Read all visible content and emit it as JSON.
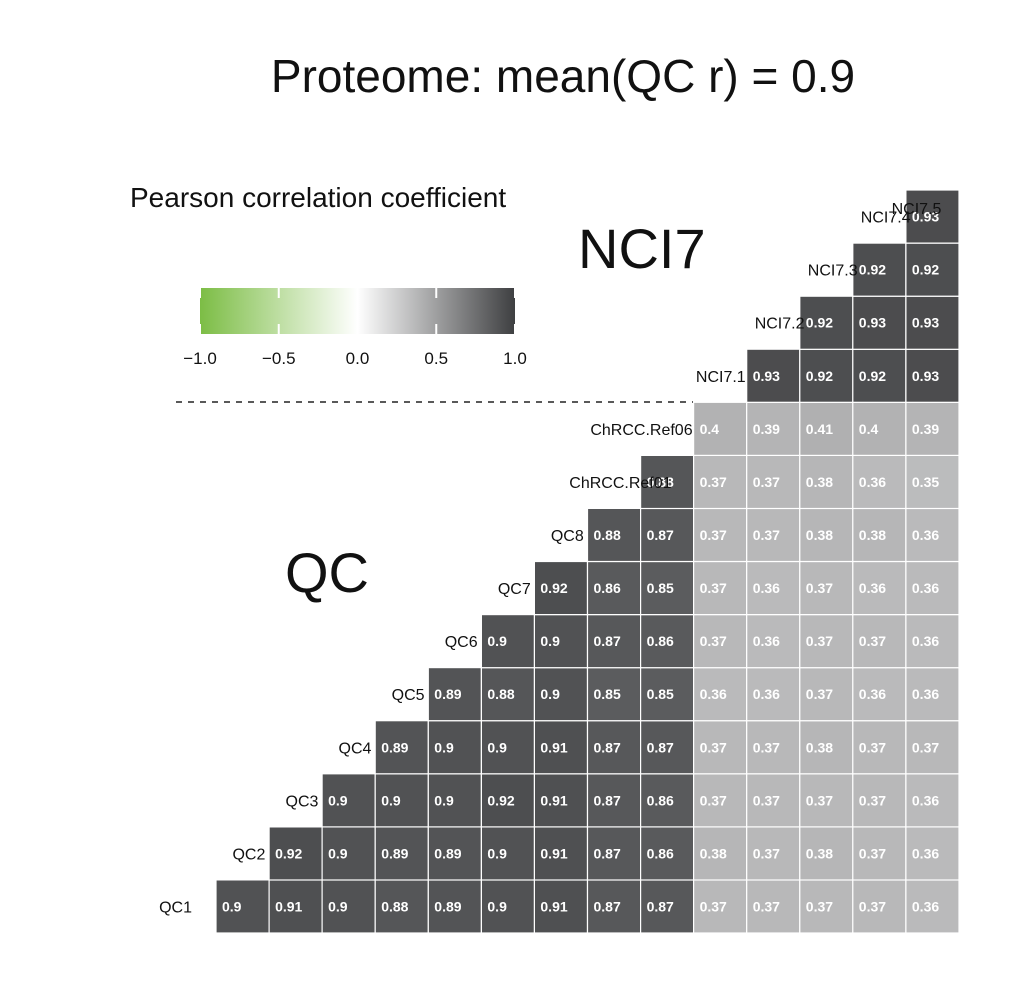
{
  "chart_data": {
    "type": "heatmap",
    "title": "Proteome: mean(QC r) = 0.9",
    "legend": {
      "title": "Pearson correlation coefficient",
      "ticks": [
        "−1.0",
        "−0.5",
        "0.0",
        "0.5",
        "1.0"
      ],
      "tick_values": [
        -1,
        -0.5,
        0,
        0.5,
        1
      ],
      "range": [
        -1,
        1
      ],
      "colors": [
        "#7cbd45",
        "#ffffff",
        "#3e3f41"
      ],
      "placement": "top-left"
    },
    "group_labels": [
      "NCI7",
      "QC"
    ],
    "samples": [
      "QC1",
      "QC2",
      "QC3",
      "QC4",
      "QC5",
      "QC6",
      "QC7",
      "QC8",
      "ChRCC.Ref01",
      "ChRCC.Ref06",
      "NCI7.1",
      "NCI7.2",
      "NCI7.3",
      "NCI7.4",
      "NCI7.5"
    ],
    "matrix": [
      [
        0.9
      ],
      [
        0.91,
        0.92
      ],
      [
        0.9,
        0.9,
        0.9
      ],
      [
        0.88,
        0.89,
        0.9,
        0.89
      ],
      [
        0.89,
        0.89,
        0.9,
        0.9,
        0.89
      ],
      [
        0.9,
        0.9,
        0.92,
        0.9,
        0.88,
        0.9
      ],
      [
        0.91,
        0.91,
        0.91,
        0.91,
        0.9,
        0.9,
        0.92
      ],
      [
        0.87,
        0.87,
        0.87,
        0.87,
        0.85,
        0.87,
        0.86,
        0.88
      ],
      [
        0.87,
        0.86,
        0.86,
        0.87,
        0.85,
        0.86,
        0.85,
        0.87,
        0.88
      ],
      [
        0.37,
        0.38,
        0.37,
        0.37,
        0.36,
        0.37,
        0.37,
        0.37,
        0.37,
        0.4
      ],
      [
        0.37,
        0.37,
        0.37,
        0.37,
        0.36,
        0.36,
        0.36,
        0.37,
        0.37,
        0.39,
        0.93
      ],
      [
        0.37,
        0.38,
        0.37,
        0.38,
        0.37,
        0.37,
        0.37,
        0.38,
        0.38,
        0.41,
        0.92,
        0.92
      ],
      [
        0.37,
        0.37,
        0.37,
        0.37,
        0.36,
        0.37,
        0.36,
        0.38,
        0.36,
        0.4,
        0.92,
        0.93,
        0.92
      ],
      [
        0.36,
        0.36,
        0.36,
        0.37,
        0.36,
        0.36,
        0.36,
        0.36,
        0.35,
        0.39,
        0.93,
        0.93,
        0.92,
        0.93
      ]
    ],
    "matrix_note_unused": ""
  }
}
